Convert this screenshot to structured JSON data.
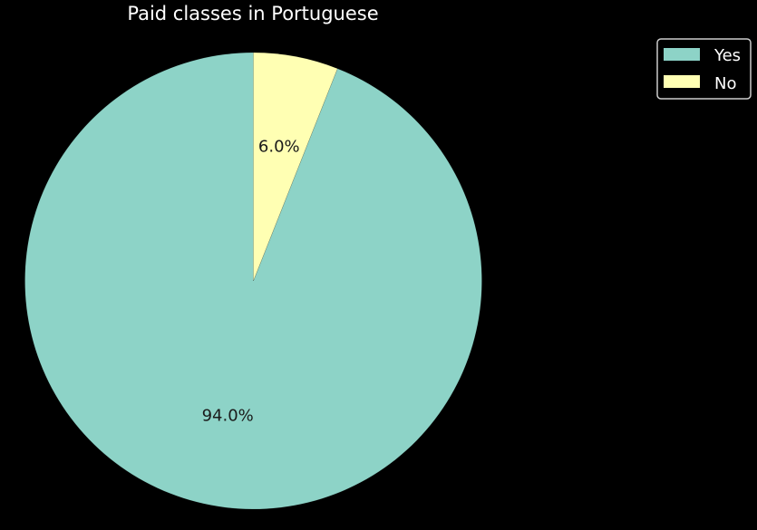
{
  "chart_data": {
    "type": "pie",
    "title": "Paid classes in Portuguese",
    "categories": [
      "Yes",
      "No"
    ],
    "values": [
      94.0,
      6.0
    ],
    "percent_labels": [
      "94.0%",
      "6.0%"
    ],
    "colors": [
      "#8dd3c7",
      "#ffffb3"
    ],
    "start_angle_deg": 90,
    "direction": "counterclockwise",
    "legend": {
      "placement": "top-right",
      "entries": [
        "Yes",
        "No"
      ]
    }
  },
  "theme": {
    "background": "#000000",
    "text": "#ffffff",
    "label_text": "#1a1a1a",
    "legend_border": "#cccccc"
  }
}
